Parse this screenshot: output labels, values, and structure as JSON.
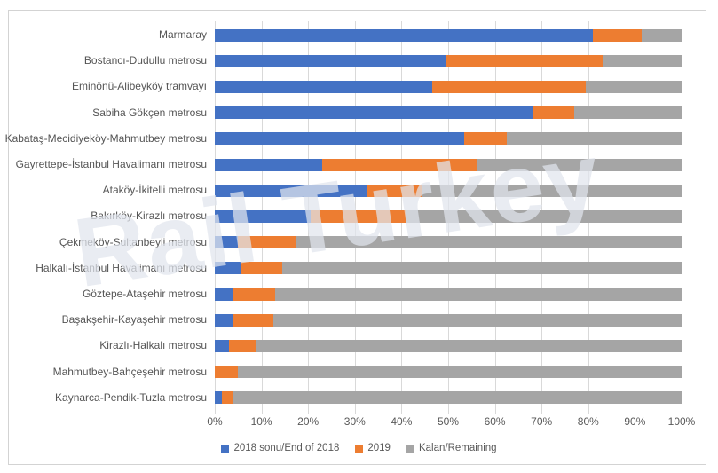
{
  "watermark": {
    "text": "Rail Turkey"
  },
  "colors": {
    "series_blue": "#4472C4",
    "series_orange": "#ED7D31",
    "series_gray": "#A5A5A5",
    "gridline": "#D9D9D9",
    "frame_border": "#D3D3D3",
    "tick_text": "#595959",
    "category_text": "#555555"
  },
  "chart_data": {
    "type": "bar",
    "orientation": "horizontal",
    "stacked": true,
    "title": "",
    "xlabel": "",
    "ylabel": "",
    "xlim": [
      0,
      100
    ],
    "grid": "vertical",
    "legend_position": "bottom",
    "x_ticks": [
      "0%",
      "10%",
      "20%",
      "30%",
      "40%",
      "50%",
      "60%",
      "70%",
      "80%",
      "90%",
      "100%"
    ],
    "categories": [
      "Marmaray",
      "Bostancı-Dudullu metrosu",
      "Eminönü-Alibeyköy tramvayı",
      "Sabiha Gökçen metrosu",
      "Kabataş-Mecidiyeköy-Mahmutbey metrosu",
      "Gayrettepe-İstanbul Havalimanı metrosu",
      "Ataköy-İkitelli metrosu",
      "Bakırköy-Kirazlı metrosu",
      "Çekmeköy-Sultanbeyli metrosu",
      "Halkalı-İstanbul Havalimanı metrosu",
      "Göztepe-Ataşehir metrosu",
      "Başakşehir-Kayaşehir metrosu",
      "Kirazlı-Halkalı metrosu",
      "Mahmutbey-Bahçeşehir metrosu",
      "Kaynarca-Pendik-Tuzla metrosu"
    ],
    "series": [
      {
        "name": "2018 sonu/End of 2018",
        "color": "#4472C4",
        "values": [
          81,
          49.5,
          46.5,
          68,
          53.5,
          23,
          32.5,
          20.5,
          5,
          5.5,
          4,
          4,
          3,
          0,
          1.5
        ]
      },
      {
        "name": "2019",
        "color": "#ED7D31",
        "values": [
          10.5,
          33.5,
          33,
          9,
          9,
          33,
          12,
          20.5,
          12.5,
          9,
          9,
          8.5,
          6,
          5,
          2.5
        ]
      },
      {
        "name": "Kalan/Remaining",
        "color": "#A5A5A5",
        "values": [
          8.5,
          17,
          20.5,
          23,
          37.5,
          44,
          55.5,
          59,
          82.5,
          85.5,
          87,
          87.5,
          91,
          95,
          96
        ]
      }
    ]
  }
}
